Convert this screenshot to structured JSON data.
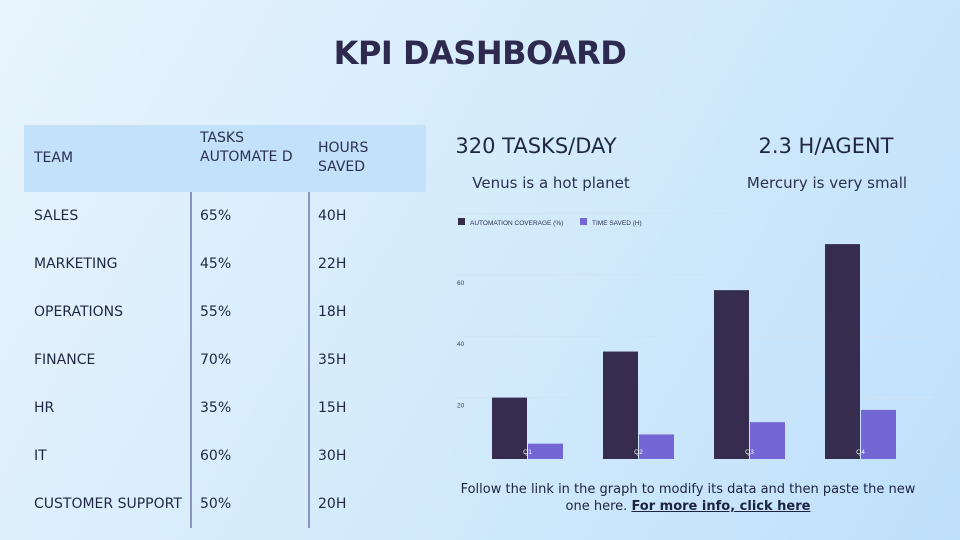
{
  "title": "KPI DASHBOARD",
  "table": {
    "headers": [
      "TEAM",
      "TASKS AUTOMATE D",
      "HOURS SAVED"
    ],
    "rows": [
      [
        "SALES",
        "65%",
        "40H"
      ],
      [
        "MARKETING",
        "45%",
        "22H"
      ],
      [
        "OPERATIONS",
        "55%",
        "18H"
      ],
      [
        "FINANCE",
        "70%",
        "35H"
      ],
      [
        "HR",
        "35%",
        "15H"
      ],
      [
        "IT",
        "60%",
        "30H"
      ],
      [
        "CUSTOMER SUPPORT",
        "50%",
        "20H"
      ]
    ]
  },
  "stats": [
    {
      "value": "320 TASKS/DAY",
      "desc": "Venus is a hot planet"
    },
    {
      "value": "2.3 H/AGENT",
      "desc": "Mercury is very small"
    }
  ],
  "footer": {
    "text": "Follow the link in the graph to modify its data and then paste the new one here.",
    "link": "For more info, click here"
  },
  "colors": {
    "series1": "#362c4d",
    "series2": "#7466d4",
    "grid": "#cfe3f3",
    "title": "#2e2a4f"
  },
  "chart_data": {
    "type": "bar",
    "categories": [
      "Q1",
      "Q2",
      "Q3",
      "Q4"
    ],
    "series": [
      {
        "name": "AUTOMATION COVERAGE (%)",
        "values": [
          20,
          35,
          55,
          70
        ]
      },
      {
        "name": "TIME SAVED (H)",
        "values": [
          5,
          8,
          12,
          16
        ]
      }
    ],
    "yticks": [
      20,
      40,
      60
    ],
    "ylim": [
      0,
      80
    ],
    "grid": true,
    "legend": "top-left"
  }
}
